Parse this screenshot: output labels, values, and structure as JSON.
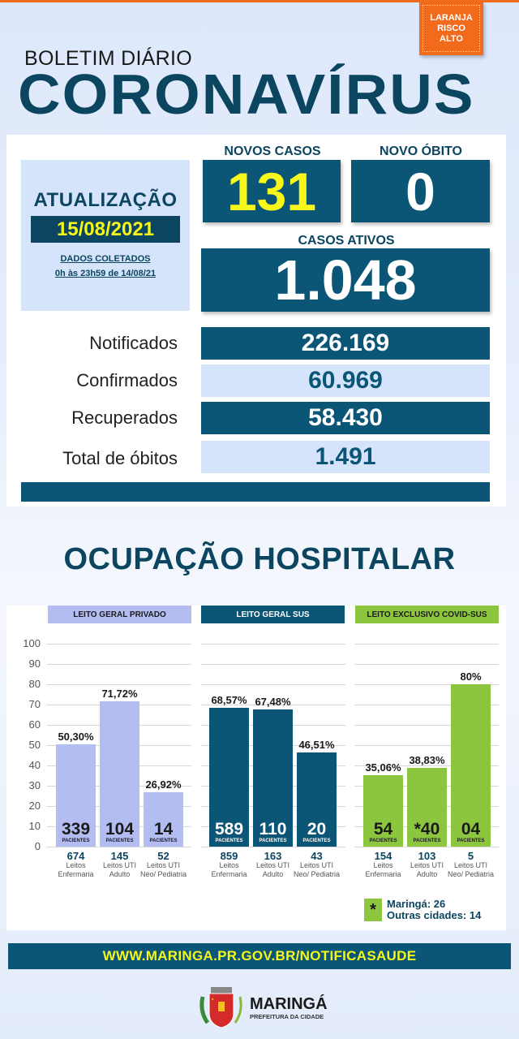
{
  "header": {
    "risk_badge": [
      "LARANJA",
      "RISCO",
      "ALTO"
    ],
    "subtitle": "BOLETIM DIÁRIO",
    "title": "CORONAVÍRUS"
  },
  "update": {
    "label": "ATUALIZAÇÃO",
    "date": "15/08/2021",
    "collected_label": "DADOS COLETADOS",
    "collected_range": "0h às 23h59 de 14/08/21"
  },
  "highlights": {
    "new_cases_label": "NOVOS CASOS",
    "new_cases": "131",
    "new_death_label": "NOVO ÓBITO",
    "new_death": "0",
    "active_label": "CASOS ATIVOS",
    "active": "1.048"
  },
  "stats": [
    {
      "label": "Notificados",
      "value": "226.169"
    },
    {
      "label": "Confirmados",
      "value": "60.969"
    },
    {
      "label": "Recuperados",
      "value": "58.430"
    },
    {
      "label": "Total de óbitos",
      "value": "1.491"
    }
  ],
  "hospital": {
    "title": "OCUPAÇÃO HOSPITALAR",
    "patients_label": "PACIENTES",
    "note_symbol": "*",
    "note_lines": [
      "Maringá: 26",
      "Outras cidades: 14"
    ]
  },
  "colors": {
    "orange": "#f26b1d",
    "navy": "#0b4560",
    "teal_box": "#0b5577",
    "yellow": "#f7f71a",
    "lavender": "#b4bdf2",
    "green": "#8cc63f",
    "light_blue": "#d5e4fb"
  },
  "chart_data": {
    "type": "bar",
    "title": "OCUPAÇÃO HOSPITALAR",
    "ylim": [
      0,
      100
    ],
    "yticks": [
      "100",
      "90",
      "80",
      "70",
      "60",
      "50",
      "40",
      "30",
      "20",
      "10",
      "0"
    ],
    "grid": true,
    "groups": [
      {
        "name": "LEITO GERAL PRIVADO",
        "color": "#b4bdf2",
        "categories": [
          "Leitos Enfermaria",
          "Leitos UTI Adulto",
          "Leitos UTI Neo/ Pediatria"
        ],
        "values": [
          50.3,
          71.72,
          26.92
        ],
        "labels": [
          "50,30%",
          "71,72%",
          "26,92%"
        ],
        "patients": [
          "339",
          "104",
          "14"
        ],
        "beds": [
          "674",
          "145",
          "52"
        ]
      },
      {
        "name": "LEITO GERAL SUS",
        "color": "#0b5577",
        "categories": [
          "Leitos Enfermaria",
          "Leitos UTI Adulto",
          "Leitos UTI Neo/ Pediatria"
        ],
        "values": [
          68.57,
          67.48,
          46.51
        ],
        "labels": [
          "68,57%",
          "67,48%",
          "46,51%"
        ],
        "patients": [
          "589",
          "110",
          "20"
        ],
        "beds": [
          "859",
          "163",
          "43"
        ]
      },
      {
        "name": "LEITO EXCLUSIVO COVID-SUS",
        "color": "#8cc63f",
        "categories": [
          "Leitos Enfermaria",
          "Leitos UTI Adulto",
          "Leitos UTI Neo/ Pediatria"
        ],
        "values": [
          35.06,
          38.83,
          80
        ],
        "labels": [
          "35,06%",
          "38,83%",
          "80%"
        ],
        "patients": [
          "54",
          "*40",
          "04"
        ],
        "beds": [
          "154",
          "103",
          "5"
        ]
      }
    ]
  },
  "footer": {
    "url": "WWW.MARINGA.PR.GOV.BR/NOTIFICASAUDE",
    "logo_name": "MARINGÁ",
    "logo_sub": "PREFEITURA DA CIDADE"
  }
}
